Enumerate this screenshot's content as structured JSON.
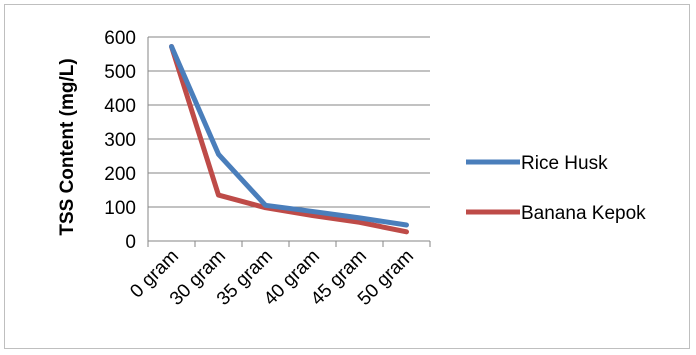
{
  "chart_data": {
    "type": "line",
    "title": "",
    "xlabel": "",
    "ylabel": "TSS Content (mg/L)",
    "categories": [
      "0 gram",
      "30 gram",
      "35 gram",
      "40 gram",
      "45 gram",
      "50 gram"
    ],
    "series": [
      {
        "name": "Rice Husk",
        "color": "#4a7ebb",
        "values": [
          572,
          255,
          105,
          87,
          68,
          47
        ]
      },
      {
        "name": "Banana Kepok",
        "color": "#be4b48",
        "values": [
          572,
          135,
          98,
          75,
          55,
          27
        ]
      }
    ],
    "ylim": [
      0,
      600
    ],
    "yticks": [
      0,
      100,
      200,
      300,
      400,
      500,
      600
    ],
    "grid": true,
    "legend": "right"
  }
}
